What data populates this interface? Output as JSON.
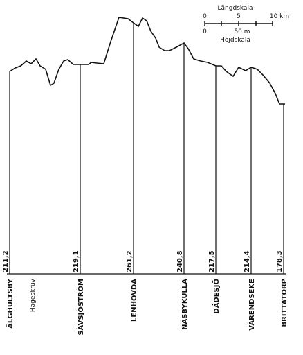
{
  "scale": {
    "length_title": "Längdskala",
    "length_ticks": [
      "0",
      "5",
      "10 km"
    ],
    "height_ticks": [
      "0",
      "50 m"
    ],
    "height_title": "Höjdskala"
  },
  "stations": [
    {
      "name": "ÄLGHULTSBY",
      "elevation": "211,2"
    },
    {
      "name": "Hageskruv"
    },
    {
      "name": "SÄVSJÖSTRÖM",
      "elevation": "219,1"
    },
    {
      "name": "LENHOVDA",
      "elevation": "261,2"
    },
    {
      "name": "NÄSBYKULLA",
      "elevation": "240,8"
    },
    {
      "name": "DÄDESJÖ",
      "elevation": "217,5"
    },
    {
      "name": "VÄRENDSEKE",
      "elevation": "214,4"
    },
    {
      "name": "BRITTATORP",
      "elevation": "178,3"
    }
  ]
}
